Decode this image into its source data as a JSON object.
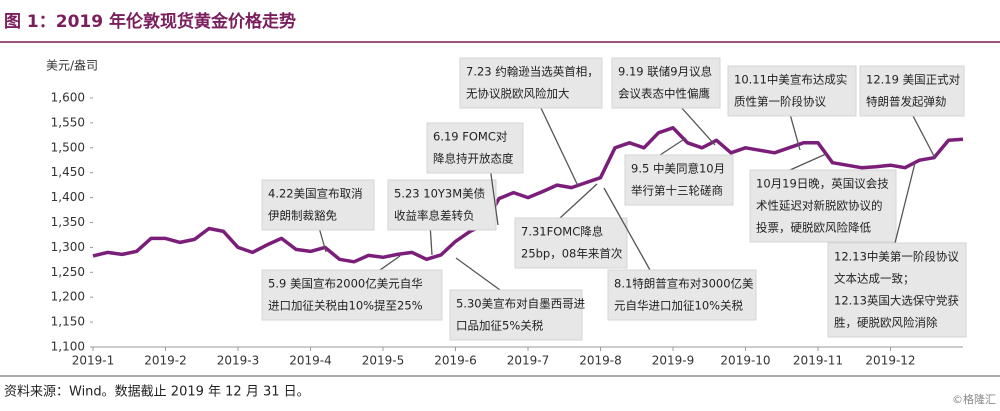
{
  "chart_data": {
    "type": "line",
    "title": "图 1：2019 年伦敦现货黄金价格走势",
    "y_label": "美元/盎司",
    "color": "#7b1e7a",
    "categories": [
      "2019-1",
      null,
      null,
      null,
      null,
      "2019-2",
      null,
      null,
      null,
      null,
      "2019-3",
      null,
      null,
      null,
      null,
      "2019-4",
      null,
      null,
      null,
      null,
      "2019-5",
      null,
      null,
      null,
      null,
      "2019-6",
      null,
      null,
      null,
      null,
      "2019-7",
      null,
      null,
      null,
      null,
      "2019-8",
      null,
      null,
      null,
      null,
      "2019-9",
      null,
      null,
      null,
      null,
      "2019-10",
      null,
      null,
      null,
      null,
      "2019-11",
      null,
      null,
      null,
      null,
      "2019-12",
      null,
      null,
      null,
      null,
      null
    ],
    "values": [
      1283,
      1290,
      1286,
      1292,
      1318,
      1318,
      1310,
      1316,
      1338,
      1332,
      1300,
      1290,
      1305,
      1318,
      1296,
      1292,
      1300,
      1276,
      1271,
      1284,
      1280,
      1286,
      1290,
      1276,
      1285,
      1312,
      1332,
      1346,
      1398,
      1410,
      1400,
      1412,
      1425,
      1420,
      1430,
      1440,
      1500,
      1510,
      1500,
      1530,
      1540,
      1510,
      1500,
      1515,
      1490,
      1500,
      1495,
      1490,
      1500,
      1510,
      1510,
      1470,
      1465,
      1460,
      1462,
      1465,
      1460,
      1475,
      1480,
      1515,
      1517
    ],
    "ylim": [
      1100,
      1620
    ],
    "yticks": [
      {
        "value": 1100,
        "label": "1,100"
      },
      {
        "value": 1150,
        "label": "1,150"
      },
      {
        "value": 1200,
        "label": "1,200"
      },
      {
        "value": 1250,
        "label": "1,250"
      },
      {
        "value": 1300,
        "label": "1,300"
      },
      {
        "value": 1350,
        "label": "1,350"
      },
      {
        "value": 1400,
        "label": "1,400"
      },
      {
        "value": 1450,
        "label": "1,450"
      },
      {
        "value": 1500,
        "label": "1,500"
      },
      {
        "value": 1550,
        "label": "1,550"
      },
      {
        "value": 1600,
        "label": "1,600"
      }
    ],
    "grid": false,
    "annotations": [
      [
        "4.22美国宣布取消",
        "伊朗制裁豁免"
      ],
      [
        "5.23 10Y3M美债",
        "收益率息差转负"
      ],
      [
        "6.19 FOMC对",
        "降息持开放态度"
      ],
      [
        "7.23 约翰逊当选英首相，",
        "无协议脱欧风险加大"
      ],
      [
        "9.19 联储9月议息",
        "会议表态中性偏鹰"
      ],
      [
        "10.11中美宣布达成实",
        "质性第一阶段协议"
      ],
      [
        "12.19 美国正式对",
        "特朗普发起弹劾"
      ],
      [
        "9.5 中美同意10月",
        "举行第十三轮磋商"
      ],
      [
        "10月19日晚，英国议会技",
        "术性延迟对新脱欧协议的",
        "投票，硬脱欧风险降低"
      ],
      [
        "7.31FOMC降息",
        "25bp，08年来首次"
      ],
      [
        "8.1特朗普宣布对3000亿美",
        "元自华进口加征10%关税"
      ],
      [
        "5.9 美国宣布2000亿美元自华",
        "进口加征关税由10%提至25%"
      ],
      [
        "5.30美宣布对自墨西哥进",
        "口品加征5%关税"
      ],
      [
        "12.13中美第一阶段协议",
        "文本达成一致；",
        "12.13英国大选保守党获",
        "胜，硬脱欧风险消除"
      ]
    ],
    "source": "资料来源：Wind。数据截止 2019 年 12 月 31 日。",
    "watermark": "©格隆汇"
  }
}
